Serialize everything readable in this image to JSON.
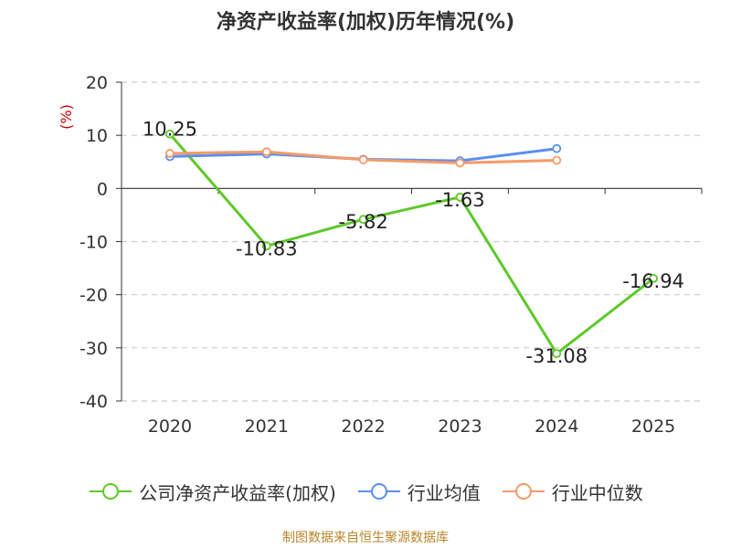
{
  "title": "净资产收益率(加权)历年情况(%)",
  "source": "制图数据来自恒生聚源数据库",
  "colors": {
    "company": "#5cc928",
    "industry_avg": "#5b8ff0",
    "industry_median": "#f59a68",
    "axis_unit": "#cc0000"
  },
  "chart_data": {
    "type": "line",
    "title": "净资产收益率(加权)历年情况(%)",
    "ylabel": "(%)",
    "xlabel": "",
    "ylim": [
      -40,
      20
    ],
    "yticks": [
      20,
      10,
      0,
      -10,
      -20,
      -30,
      -40
    ],
    "grid": true,
    "legend_position": "bottom",
    "categories": [
      "2020",
      "2021",
      "2022",
      "2023",
      "2024",
      "2025"
    ],
    "series": [
      {
        "name": "公司净资产收益率(加权)",
        "color": "#5cc928",
        "values": [
          10.25,
          -10.83,
          -5.82,
          -1.63,
          -31.08,
          -16.94
        ],
        "labels": [
          "10.25",
          "-10.83",
          "-5.82",
          "-1.63",
          "-31.08",
          "-16.94"
        ]
      },
      {
        "name": "行业均值",
        "color": "#5b8ff0",
        "values": [
          6.0,
          6.5,
          5.5,
          5.2,
          7.5,
          null
        ]
      },
      {
        "name": "行业中位数",
        "color": "#f59a68",
        "values": [
          6.6,
          6.9,
          5.4,
          4.8,
          5.3,
          null
        ]
      }
    ]
  }
}
